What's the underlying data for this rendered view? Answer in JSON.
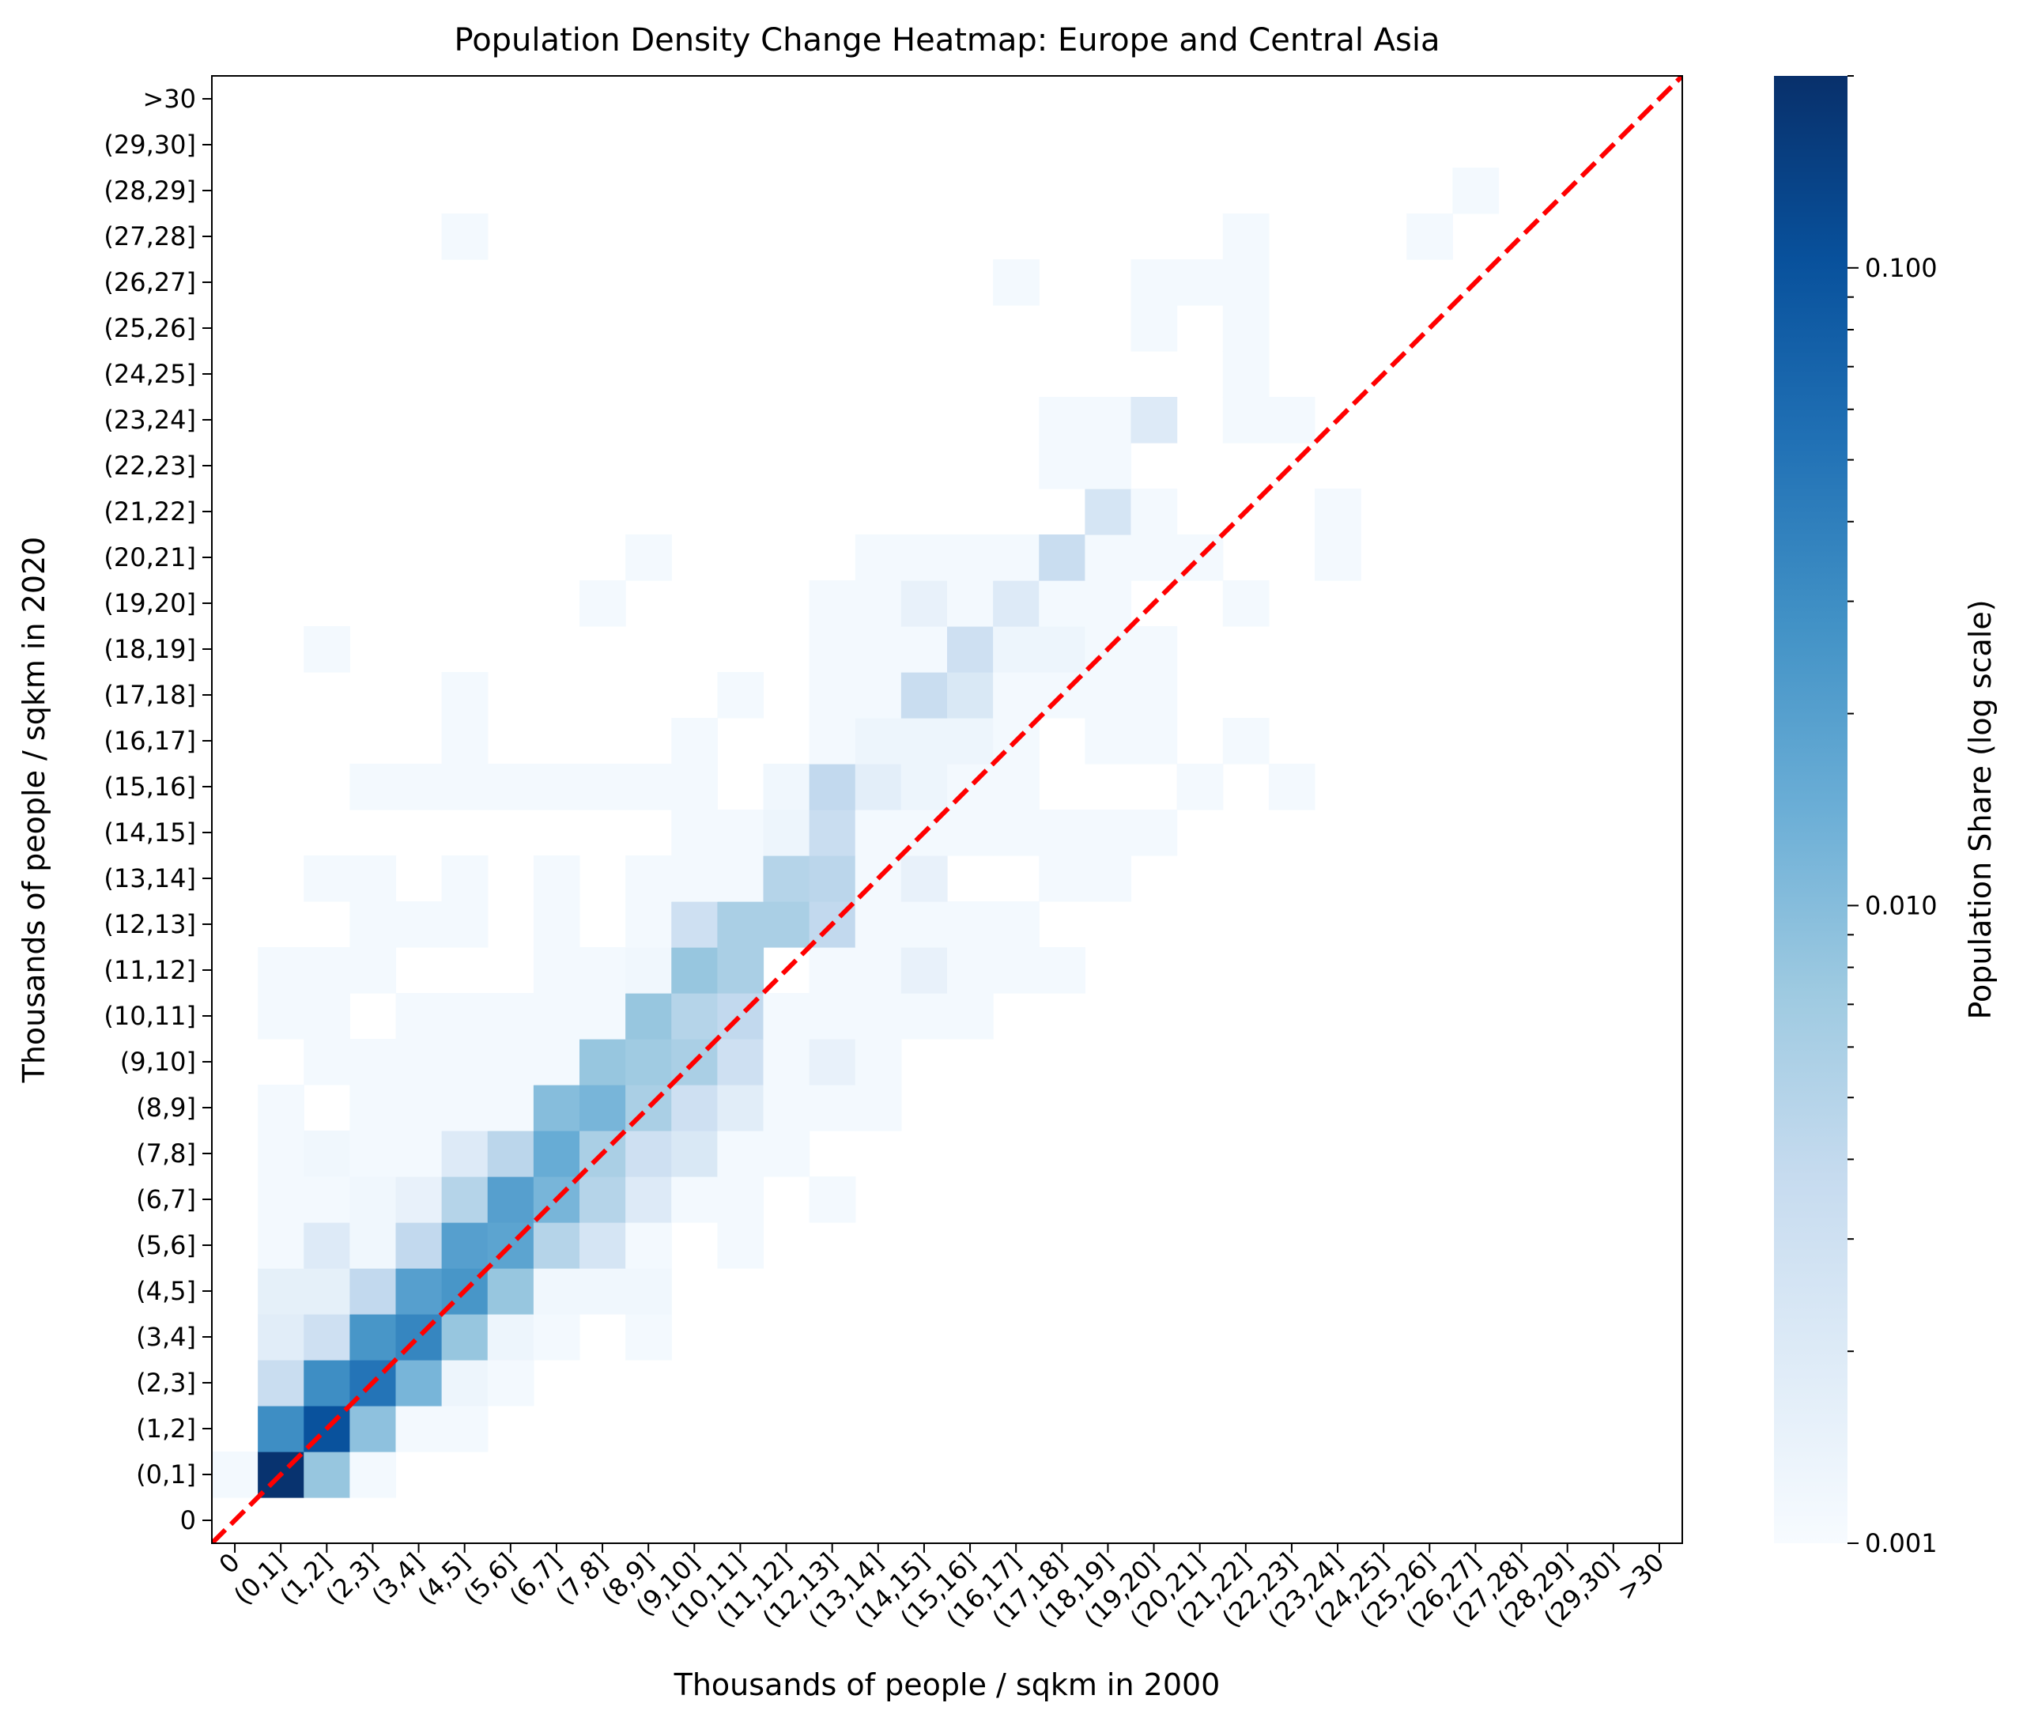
{
  "chart_data": {
    "type": "heatmap",
    "title": "Population Density Change Heatmap: Europe and Central Asia",
    "xlabel": "Thousands of people / sqkm in 2000",
    "ylabel": "Thousands of people / sqkm in 2020",
    "colorbar_label": "Population Share (log scale)",
    "colorbar_ticks": [
      "0.001",
      "0.010",
      "0.100"
    ],
    "color_scale": "log",
    "vmin": 0.001,
    "vmax": 0.2,
    "colormap": "Blues",
    "categories": [
      "0",
      "(0,1]",
      "(1,2]",
      "(2,3]",
      "(3,4]",
      "(4,5]",
      "(5,6]",
      "(6,7]",
      "(7,8]",
      "(8,9]",
      "(9,10]",
      "(10,11]",
      "(11,12]",
      "(12,13]",
      "(13,14]",
      "(14,15]",
      "(15,16]",
      "(16,17]",
      "(17,18]",
      "(18,19]",
      "(19,20]",
      "(20,21]",
      "(21,22]",
      "(22,23]",
      "(23,24]",
      "(24,25]",
      "(25,26]",
      "(26,27]",
      "(27,28]",
      "(28,29]",
      "(29,30]",
      ">30"
    ],
    "reference_line": "y = x (red dashed)",
    "cells": [
      [
        0,
        1,
        0.0011
      ],
      [
        1,
        1,
        0.19
      ],
      [
        2,
        1,
        0.008
      ],
      [
        3,
        1,
        0.0011
      ],
      [
        1,
        2,
        0.03
      ],
      [
        2,
        2,
        0.1
      ],
      [
        3,
        2,
        0.009
      ],
      [
        4,
        2,
        0.0011
      ],
      [
        5,
        2,
        0.0011
      ],
      [
        1,
        3,
        0.0035
      ],
      [
        2,
        3,
        0.03
      ],
      [
        3,
        3,
        0.05
      ],
      [
        4,
        3,
        0.012
      ],
      [
        5,
        3,
        0.0013
      ],
      [
        6,
        3,
        0.0011
      ],
      [
        1,
        4,
        0.0018
      ],
      [
        2,
        4,
        0.003
      ],
      [
        3,
        4,
        0.025
      ],
      [
        4,
        4,
        0.035
      ],
      [
        5,
        4,
        0.008
      ],
      [
        6,
        4,
        0.0013
      ],
      [
        7,
        4,
        0.0011
      ],
      [
        9,
        4,
        0.0011
      ],
      [
        1,
        5,
        0.0016
      ],
      [
        2,
        5,
        0.0016
      ],
      [
        3,
        5,
        0.004
      ],
      [
        4,
        5,
        0.02
      ],
      [
        5,
        5,
        0.025
      ],
      [
        6,
        5,
        0.008
      ],
      [
        7,
        5,
        0.0012
      ],
      [
        8,
        5,
        0.0012
      ],
      [
        9,
        5,
        0.0012
      ],
      [
        1,
        6,
        0.0011
      ],
      [
        2,
        6,
        0.002
      ],
      [
        3,
        6,
        0.0012
      ],
      [
        4,
        6,
        0.004
      ],
      [
        5,
        6,
        0.02
      ],
      [
        6,
        6,
        0.018
      ],
      [
        7,
        6,
        0.005
      ],
      [
        8,
        6,
        0.0025
      ],
      [
        9,
        6,
        0.0011
      ],
      [
        11,
        6,
        0.0011
      ],
      [
        1,
        7,
        0.0011
      ],
      [
        2,
        7,
        0.0011
      ],
      [
        3,
        7,
        0.0012
      ],
      [
        4,
        7,
        0.0015
      ],
      [
        5,
        7,
        0.005
      ],
      [
        6,
        7,
        0.02
      ],
      [
        7,
        7,
        0.012
      ],
      [
        8,
        7,
        0.005
      ],
      [
        9,
        7,
        0.002
      ],
      [
        10,
        7,
        0.0011
      ],
      [
        11,
        7,
        0.0011
      ],
      [
        13,
        7,
        0.0011
      ],
      [
        1,
        8,
        0.0011
      ],
      [
        2,
        8,
        0.0012
      ],
      [
        3,
        8,
        0.0011
      ],
      [
        4,
        8,
        0.0011
      ],
      [
        5,
        8,
        0.002
      ],
      [
        6,
        8,
        0.0045
      ],
      [
        7,
        8,
        0.015
      ],
      [
        8,
        8,
        0.006
      ],
      [
        9,
        8,
        0.003
      ],
      [
        10,
        8,
        0.0022
      ],
      [
        11,
        8,
        0.0011
      ],
      [
        12,
        8,
        0.0011
      ],
      [
        1,
        9,
        0.0011
      ],
      [
        3,
        9,
        0.0011
      ],
      [
        4,
        9,
        0.0011
      ],
      [
        5,
        9,
        0.0011
      ],
      [
        6,
        9,
        0.0011
      ],
      [
        7,
        9,
        0.01
      ],
      [
        8,
        9,
        0.012
      ],
      [
        9,
        9,
        0.006
      ],
      [
        10,
        9,
        0.003
      ],
      [
        11,
        9,
        0.0018
      ],
      [
        12,
        9,
        0.0011
      ],
      [
        13,
        9,
        0.0011
      ],
      [
        14,
        9,
        0.0011
      ],
      [
        2,
        10,
        0.0011
      ],
      [
        3,
        10,
        0.0011
      ],
      [
        4,
        10,
        0.0011
      ],
      [
        5,
        10,
        0.0011
      ],
      [
        6,
        10,
        0.0011
      ],
      [
        7,
        10,
        0.0011
      ],
      [
        8,
        10,
        0.008
      ],
      [
        9,
        10,
        0.007
      ],
      [
        10,
        10,
        0.006
      ],
      [
        11,
        10,
        0.003
      ],
      [
        12,
        10,
        0.0011
      ],
      [
        13,
        10,
        0.0015
      ],
      [
        14,
        10,
        0.0011
      ],
      [
        1,
        11,
        0.0011
      ],
      [
        2,
        11,
        0.0011
      ],
      [
        4,
        11,
        0.0011
      ],
      [
        5,
        11,
        0.0011
      ],
      [
        6,
        11,
        0.0011
      ],
      [
        7,
        11,
        0.0011
      ],
      [
        8,
        11,
        0.0011
      ],
      [
        9,
        11,
        0.008
      ],
      [
        10,
        11,
        0.005
      ],
      [
        11,
        11,
        0.004
      ],
      [
        12,
        11,
        0.0011
      ],
      [
        13,
        11,
        0.0011
      ],
      [
        14,
        11,
        0.0011
      ],
      [
        15,
        11,
        0.0011
      ],
      [
        16,
        11,
        0.0011
      ],
      [
        1,
        12,
        0.0011
      ],
      [
        2,
        12,
        0.0011
      ],
      [
        3,
        12,
        0.0011
      ],
      [
        7,
        12,
        0.0011
      ],
      [
        8,
        12,
        0.0011
      ],
      [
        9,
        12,
        0.0012
      ],
      [
        10,
        12,
        0.008
      ],
      [
        11,
        12,
        0.006
      ],
      [
        13,
        12,
        0.0011
      ],
      [
        14,
        12,
        0.0011
      ],
      [
        15,
        12,
        0.0015
      ],
      [
        16,
        12,
        0.0011
      ],
      [
        17,
        12,
        0.0011
      ],
      [
        18,
        12,
        0.0011
      ],
      [
        3,
        13,
        0.0011
      ],
      [
        4,
        13,
        0.0011
      ],
      [
        5,
        13,
        0.0011
      ],
      [
        7,
        13,
        0.0011
      ],
      [
        9,
        13,
        0.0011
      ],
      [
        10,
        13,
        0.003
      ],
      [
        11,
        13,
        0.006
      ],
      [
        12,
        13,
        0.006
      ],
      [
        13,
        13,
        0.004
      ],
      [
        14,
        13,
        0.0011
      ],
      [
        15,
        13,
        0.0011
      ],
      [
        16,
        13,
        0.0011
      ],
      [
        17,
        13,
        0.0011
      ],
      [
        2,
        14,
        0.0011
      ],
      [
        3,
        14,
        0.0011
      ],
      [
        5,
        14,
        0.0011
      ],
      [
        7,
        14,
        0.0011
      ],
      [
        9,
        14,
        0.0011
      ],
      [
        10,
        14,
        0.0011
      ],
      [
        11,
        14,
        0.0011
      ],
      [
        12,
        14,
        0.005
      ],
      [
        13,
        14,
        0.0045
      ],
      [
        14,
        14,
        0.0011
      ],
      [
        15,
        14,
        0.0015
      ],
      [
        18,
        14,
        0.0011
      ],
      [
        19,
        14,
        0.0011
      ],
      [
        10,
        15,
        0.0011
      ],
      [
        11,
        15,
        0.0011
      ],
      [
        12,
        15,
        0.0013
      ],
      [
        13,
        15,
        0.0035
      ],
      [
        14,
        15,
        0.0011
      ],
      [
        15,
        15,
        0.0011
      ],
      [
        16,
        15,
        0.0011
      ],
      [
        17,
        15,
        0.0011
      ],
      [
        18,
        15,
        0.0011
      ],
      [
        19,
        15,
        0.0011
      ],
      [
        20,
        15,
        0.0011
      ],
      [
        3,
        16,
        0.0011
      ],
      [
        4,
        16,
        0.0011
      ],
      [
        5,
        16,
        0.0011
      ],
      [
        6,
        16,
        0.0011
      ],
      [
        7,
        16,
        0.0011
      ],
      [
        8,
        16,
        0.0011
      ],
      [
        9,
        16,
        0.0011
      ],
      [
        10,
        16,
        0.0011
      ],
      [
        12,
        16,
        0.0012
      ],
      [
        13,
        16,
        0.004
      ],
      [
        14,
        16,
        0.0017
      ],
      [
        15,
        16,
        0.0013
      ],
      [
        16,
        16,
        0.0011
      ],
      [
        17,
        16,
        0.0011
      ],
      [
        21,
        16,
        0.0011
      ],
      [
        23,
        16,
        0.0011
      ],
      [
        5,
        17,
        0.0011
      ],
      [
        10,
        17,
        0.0011
      ],
      [
        13,
        17,
        0.0011
      ],
      [
        14,
        17,
        0.0013
      ],
      [
        15,
        17,
        0.0013
      ],
      [
        16,
        17,
        0.0013
      ],
      [
        17,
        17,
        0.0011
      ],
      [
        19,
        17,
        0.0011
      ],
      [
        20,
        17,
        0.0011
      ],
      [
        22,
        17,
        0.0011
      ],
      [
        5,
        18,
        0.0011
      ],
      [
        11,
        18,
        0.0011
      ],
      [
        13,
        18,
        0.0011
      ],
      [
        14,
        18,
        0.0011
      ],
      [
        15,
        18,
        0.0035
      ],
      [
        16,
        18,
        0.0022
      ],
      [
        17,
        18,
        0.0011
      ],
      [
        18,
        18,
        0.0011
      ],
      [
        19,
        18,
        0.0011
      ],
      [
        20,
        18,
        0.0011
      ],
      [
        2,
        19,
        0.0011
      ],
      [
        13,
        19,
        0.0011
      ],
      [
        14,
        19,
        0.0011
      ],
      [
        15,
        19,
        0.0011
      ],
      [
        16,
        19,
        0.003
      ],
      [
        17,
        19,
        0.0013
      ],
      [
        18,
        19,
        0.0013
      ],
      [
        19,
        19,
        0.0011
      ],
      [
        20,
        19,
        0.0011
      ],
      [
        8,
        20,
        0.0011
      ],
      [
        13,
        20,
        0.0011
      ],
      [
        14,
        20,
        0.0011
      ],
      [
        15,
        20,
        0.0015
      ],
      [
        16,
        20,
        0.0011
      ],
      [
        17,
        20,
        0.002
      ],
      [
        18,
        20,
        0.0011
      ],
      [
        19,
        20,
        0.0011
      ],
      [
        22,
        20,
        0.0011
      ],
      [
        9,
        21,
        0.0011
      ],
      [
        14,
        21,
        0.0011
      ],
      [
        15,
        21,
        0.0011
      ],
      [
        16,
        21,
        0.0011
      ],
      [
        17,
        21,
        0.0011
      ],
      [
        18,
        21,
        0.0035
      ],
      [
        19,
        21,
        0.0011
      ],
      [
        20,
        21,
        0.0011
      ],
      [
        21,
        21,
        0.0011
      ],
      [
        24,
        21,
        0.0011
      ],
      [
        19,
        22,
        0.0025
      ],
      [
        20,
        22,
        0.0011
      ],
      [
        24,
        22,
        0.0011
      ],
      [
        18,
        23,
        0.0011
      ],
      [
        19,
        23,
        0.0011
      ],
      [
        18,
        24,
        0.0011
      ],
      [
        19,
        24,
        0.0011
      ],
      [
        20,
        24,
        0.002
      ],
      [
        22,
        24,
        0.0011
      ],
      [
        23,
        24,
        0.0011
      ],
      [
        22,
        25,
        0.0011
      ],
      [
        20,
        26,
        0.0011
      ],
      [
        22,
        26,
        0.0011
      ],
      [
        17,
        27,
        0.0011
      ],
      [
        20,
        27,
        0.0011
      ],
      [
        21,
        27,
        0.0011
      ],
      [
        22,
        27,
        0.0011
      ],
      [
        5,
        28,
        0.0011
      ],
      [
        22,
        28,
        0.0011
      ],
      [
        26,
        28,
        0.0011
      ],
      [
        27,
        29,
        0.0011
      ]
    ]
  }
}
